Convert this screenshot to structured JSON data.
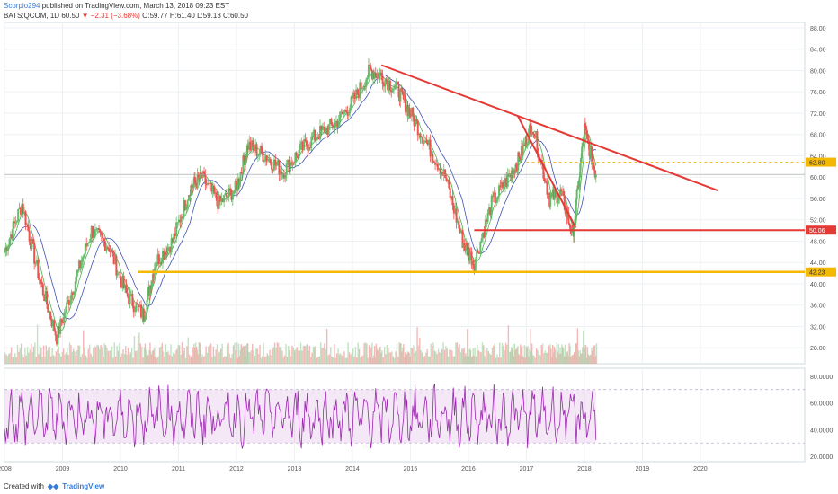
{
  "header": {
    "author": "Scorpio294",
    "published": "published on TradingView.com, March 13, 2018 09:23 EST",
    "symbol": "BATS:QCOM, 1D",
    "last": "60.50",
    "change_arrow": "▼",
    "change": "−2.31 (−3.68%)",
    "ohlc": "O:59.77 H:61.40 L:59.13 C:60.50"
  },
  "footer": {
    "created_with": "Created with",
    "brand": "TradingView"
  },
  "colors": {
    "trend": "#e53935",
    "support": "#f5b800",
    "rsi": "#9c27b0",
    "ma_fast": "#4caf50",
    "ma_slow": "#3f51b5"
  },
  "chart_data": [
    {
      "type": "line",
      "series": [
        {
          "x": [
            2008.0,
            2008.3,
            2008.6,
            2008.9,
            2009.2,
            2009.5,
            2009.8,
            2010.1,
            2010.4,
            2010.6,
            2010.9,
            2011.2,
            2011.4,
            2011.7,
            2012.0,
            2012.2,
            2012.5,
            2012.8,
            2013.1,
            2013.4,
            2013.7,
            2014.0,
            2014.3,
            2014.5,
            2014.8,
            2015.0,
            2015.3,
            2015.6,
            2015.9,
            2016.1,
            2016.4,
            2016.7,
            2016.9,
            2017.1,
            2017.4,
            2017.6,
            2017.8,
            2018.0,
            2018.2
          ],
          "values": [
            46,
            55,
            41,
            30,
            40,
            50,
            47,
            38,
            34,
            44,
            48,
            58,
            60,
            55,
            58,
            66,
            64,
            61,
            65,
            68,
            70,
            74,
            80,
            79,
            76,
            72,
            66,
            60,
            48,
            44,
            55,
            60,
            64,
            70,
            56,
            57,
            49,
            69,
            60.5
          ]
        }
      ],
      "x_ticks": [
        "2008",
        "2009",
        "2010",
        "2011",
        "2012",
        "2013",
        "2014",
        "2015",
        "2016",
        "2017",
        "2018",
        "2019",
        "2020"
      ],
      "x_tick_values": [
        2008,
        2009,
        2010,
        2011,
        2012,
        2013,
        2014,
        2015,
        2016,
        2017,
        2018,
        2019,
        2020
      ],
      "y_ticks": [
        "28.00",
        "32.00",
        "36.00",
        "40.00",
        "44.00",
        "48.00",
        "52.00",
        "56.00",
        "60.00",
        "64.00",
        "68.00",
        "72.00",
        "76.00",
        "80.00",
        "84.00",
        "88.00"
      ],
      "y_tick_values": [
        28,
        32,
        36,
        40,
        44,
        48,
        52,
        56,
        60,
        64,
        68,
        72,
        76,
        80,
        84,
        88
      ],
      "ylim": [
        25,
        89
      ],
      "xlim": [
        2008,
        2021.8
      ],
      "price_labels": [
        {
          "text": "62.80",
          "value": 62.8,
          "style": "yellow"
        },
        {
          "text": "50.06",
          "value": 50.06,
          "style": "red"
        },
        {
          "text": "42.23",
          "value": 42.23,
          "style": "yellow"
        }
      ],
      "trendlines": [
        {
          "from": [
            2014.5,
            81
          ],
          "to": [
            2020.3,
            57.5
          ]
        },
        {
          "from": [
            2016.85,
            71.5
          ],
          "to": [
            2017.85,
            50.5
          ]
        },
        {
          "from": [
            2016.1,
            50.06
          ],
          "to": [
            2021.8,
            50.06
          ]
        }
      ],
      "support_line": {
        "value": 42.23,
        "from": 2010.3
      },
      "dashed_level": {
        "value": 62.8,
        "from": 2017.0,
        "to": 2021.8
      }
    },
    {
      "type": "line",
      "y_ticks": [
        "20.0000",
        "40.0000",
        "60.0000",
        "80.0000"
      ],
      "y_tick_values": [
        20,
        40,
        60,
        80
      ],
      "ylim": [
        16,
        86
      ],
      "band": [
        30,
        70
      ]
    }
  ]
}
